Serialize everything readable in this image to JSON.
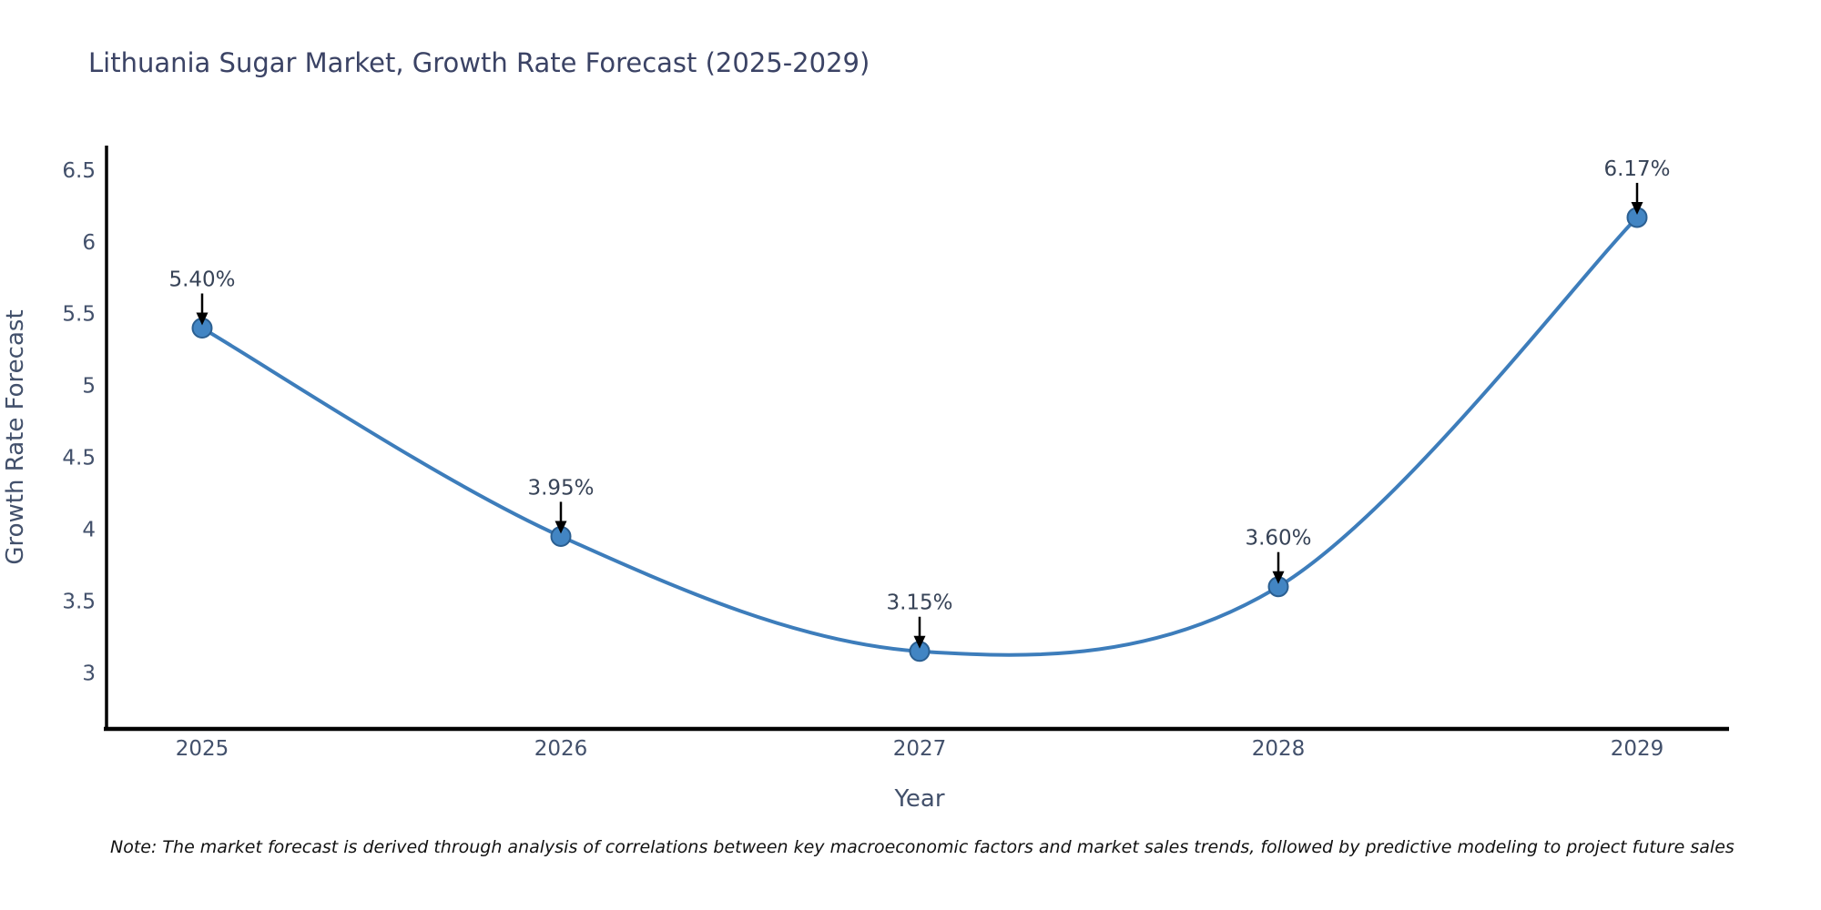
{
  "title": "Lithuania Sugar Market, Growth Rate Forecast (2025-2029)",
  "note": "Note: The market forecast is derived through analysis of correlations between key macroeconomic factors and market sales trends, followed by predictive modeling to project future sales",
  "chart_data": {
    "type": "line",
    "title": "Lithuania Sugar Market, Growth Rate Forecast (2025-2029)",
    "xlabel": "Year",
    "ylabel": "Growth Rate Forecast",
    "categories": [
      "2025",
      "2026",
      "2027",
      "2028",
      "2029"
    ],
    "values": [
      5.4,
      3.95,
      3.15,
      3.6,
      6.17
    ],
    "point_labels": [
      "5.40%",
      "3.95%",
      "3.15%",
      "3.60%",
      "6.17%"
    ],
    "yticks": [
      3,
      3.5,
      4,
      4.5,
      5,
      5.5,
      6,
      6.5
    ],
    "ylim": [
      2.61,
      6.67
    ],
    "grid": false,
    "legend": "none",
    "smoothing": "spline",
    "colors": {
      "line": "#3d7dbb",
      "marker_fill": "#4285c3",
      "marker_edge": "#2b5f91",
      "axis": "#000000",
      "arrow": "#000000",
      "tick_text": "#42506b",
      "annotation_text": "#374357"
    }
  }
}
